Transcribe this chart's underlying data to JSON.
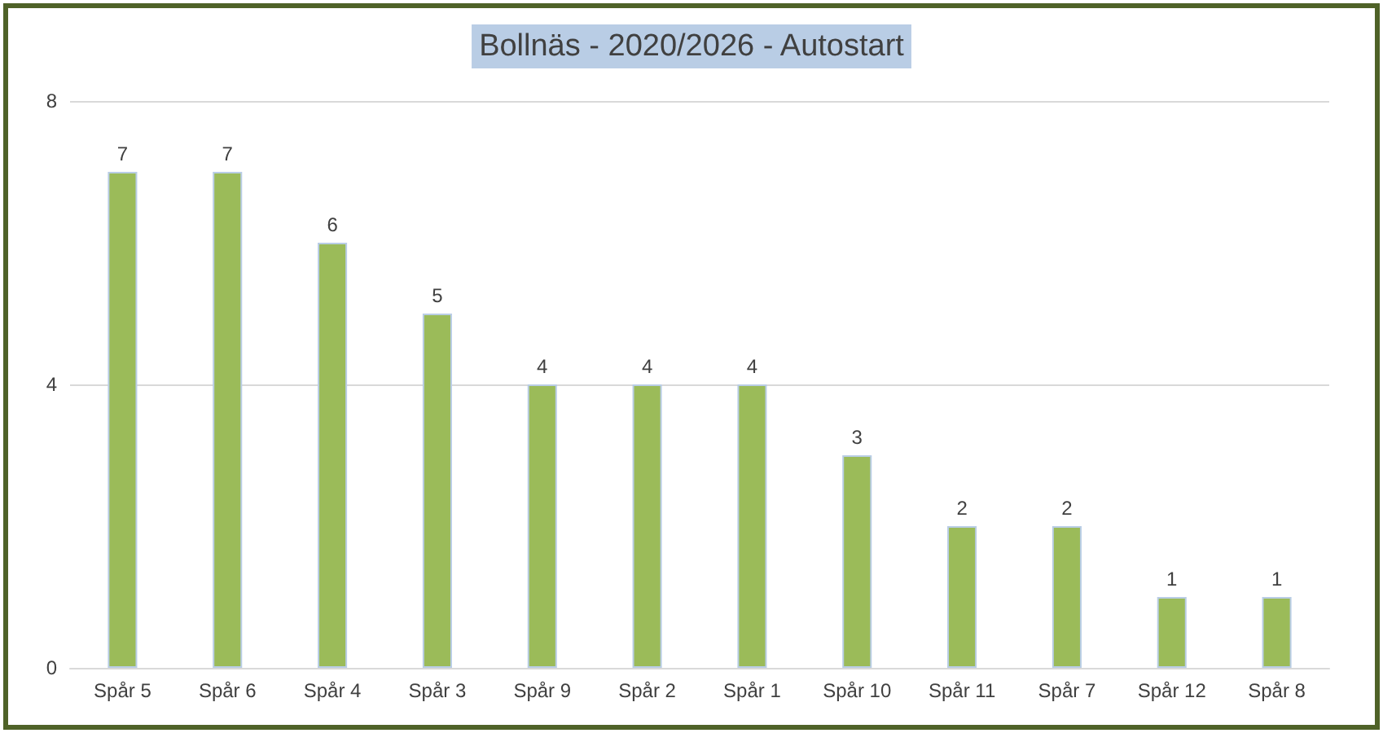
{
  "chart_data": {
    "type": "bar",
    "title": "Bollnäs - 2020/2026 - Autostart",
    "categories": [
      "Spår 5",
      "Spår 6",
      "Spår 4",
      "Spår 3",
      "Spår 9",
      "Spår 2",
      "Spår 1",
      "Spår 10",
      "Spår 11",
      "Spår 7",
      "Spår 12",
      "Spår 8"
    ],
    "values": [
      7,
      7,
      6,
      5,
      4,
      4,
      4,
      3,
      2,
      2,
      1,
      1
    ],
    "color": "#9bbb59",
    "ylim": [
      0,
      8
    ],
    "yticks": [
      0,
      4,
      8
    ],
    "grid": "y",
    "data_labels": true
  }
}
